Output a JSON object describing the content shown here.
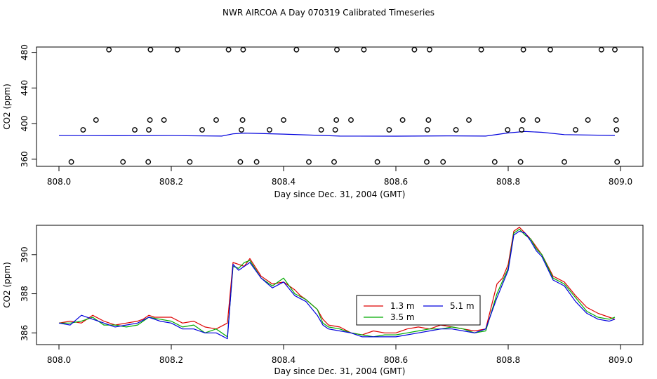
{
  "title": "NWR AIRCOA A  Day 070319  Calibrated Timeseries",
  "top_panel": {
    "ylabel": "CO2 (ppm)",
    "xlabel": "Day since Dec. 31, 2004 (GMT)",
    "xlim": [
      808.0,
      809.0
    ],
    "ylim": [
      352,
      486
    ],
    "xticks": [
      "808.0",
      "808.2",
      "808.4",
      "808.6",
      "808.8",
      "809.0"
    ],
    "yticks": [
      "360",
      "400",
      "440",
      "480"
    ]
  },
  "bottom_panel": {
    "ylabel": "CO2 (ppm)",
    "xlabel": "Day since Dec. 31, 2004 (GMT)",
    "xlim": [
      808.0,
      809.0
    ],
    "ylim": [
      385.4,
      391.5
    ],
    "xticks": [
      "808.0",
      "808.2",
      "808.4",
      "808.6",
      "808.8",
      "809.0"
    ],
    "yticks": [
      "386",
      "388",
      "390"
    ],
    "legend": [
      {
        "label": "1.3 m",
        "color": "#dd0000"
      },
      {
        "label": "3.5 m",
        "color": "#00aa00"
      },
      {
        "label": "5.1 m",
        "color": "#0000dd"
      }
    ]
  },
  "chart_data": [
    {
      "type": "scatter+line",
      "title": "NWR AIRCOA A  Day 070319  Calibrated Timeseries",
      "xlabel": "Day since Dec. 31, 2004 (GMT)",
      "ylabel": "CO2 (ppm)",
      "xlim": [
        808.0,
        809.0
      ],
      "ylim": [
        352,
        486
      ],
      "calibration_points": {
        "x": [
          808.022,
          808.043,
          808.066,
          808.089,
          808.114,
          808.135,
          808.159,
          808.16,
          808.162,
          808.163,
          808.187,
          808.211,
          808.233,
          808.255,
          808.28,
          808.302,
          808.323,
          808.325,
          808.327,
          808.328,
          808.352,
          808.375,
          808.4,
          808.423,
          808.445,
          808.467,
          808.49,
          808.492,
          808.494,
          808.495,
          808.52,
          808.543,
          808.567,
          808.588,
          808.612,
          808.633,
          808.655,
          808.656,
          808.658,
          808.66,
          808.684,
          808.707,
          808.73,
          808.752,
          808.776,
          808.799,
          808.822,
          808.824,
          808.826,
          808.827,
          808.852,
          808.875,
          808.9,
          808.92,
          808.942,
          808.966,
          808.99,
          808.992,
          808.993,
          808.994
        ],
        "y": [
          357,
          393,
          404,
          483,
          357,
          393,
          357,
          393,
          404,
          483,
          404,
          483,
          357,
          393,
          404,
          483,
          357,
          393,
          404,
          483,
          357,
          393,
          404,
          483,
          357,
          393,
          357,
          393,
          404,
          483,
          404,
          483,
          357,
          393,
          404,
          483,
          357,
          393,
          404,
          483,
          357,
          393,
          404,
          483,
          357,
          393,
          357,
          393,
          404,
          483,
          404,
          483,
          357,
          393,
          404,
          483,
          483,
          404,
          393,
          357
        ]
      },
      "series": [
        {
          "name": "fit",
          "color": "#0000dd",
          "x": [
            808.0,
            808.1,
            808.2,
            808.29,
            808.31,
            808.33,
            808.4,
            808.5,
            808.6,
            808.7,
            808.76,
            808.8,
            808.83,
            808.86,
            808.9,
            808.99
          ],
          "y": [
            386.5,
            386.4,
            386.5,
            386.0,
            388.5,
            389.4,
            388.2,
            386.0,
            385.9,
            386.2,
            386.0,
            389.5,
            391.2,
            390.2,
            387.6,
            386.7
          ]
        }
      ]
    },
    {
      "type": "line",
      "xlabel": "Day since Dec. 31, 2004 (GMT)",
      "ylabel": "CO2 (ppm)",
      "xlim": [
        808.0,
        809.0
      ],
      "ylim": [
        385.4,
        391.5
      ],
      "legend_position": "center-right",
      "series": [
        {
          "name": "1.3 m",
          "color": "#dd0000",
          "x": [
            808.0,
            808.02,
            808.04,
            808.06,
            808.08,
            808.1,
            808.12,
            808.14,
            808.15,
            808.16,
            808.17,
            808.18,
            808.2,
            808.22,
            808.24,
            808.26,
            808.28,
            808.3,
            808.31,
            808.32,
            808.33,
            808.34,
            808.36,
            808.38,
            808.4,
            808.42,
            808.43,
            808.44,
            808.46,
            808.47,
            808.48,
            808.5,
            808.52,
            808.54,
            808.56,
            808.58,
            808.6,
            808.62,
            808.64,
            808.66,
            808.68,
            808.7,
            808.72,
            808.74,
            808.76,
            808.78,
            808.79,
            808.8,
            808.81,
            808.82,
            808.83,
            808.84,
            808.85,
            808.86,
            808.88,
            808.9,
            808.92,
            808.94,
            808.96,
            808.98,
            808.99
          ],
          "y": [
            386.5,
            386.6,
            386.5,
            386.9,
            386.6,
            386.4,
            386.5,
            386.6,
            386.7,
            386.9,
            386.8,
            386.8,
            386.8,
            386.5,
            386.6,
            386.3,
            386.2,
            386.5,
            389.6,
            389.5,
            389.4,
            389.8,
            388.9,
            388.5,
            388.6,
            388.2,
            387.9,
            387.7,
            387.2,
            386.7,
            386.4,
            386.3,
            386.0,
            385.9,
            386.1,
            386.0,
            386.0,
            386.2,
            386.3,
            386.2,
            386.4,
            386.3,
            386.2,
            386.1,
            386.2,
            388.5,
            388.8,
            389.5,
            391.2,
            391.4,
            391.1,
            390.8,
            390.4,
            390.0,
            388.9,
            388.6,
            387.9,
            387.3,
            387.0,
            386.8,
            386.7
          ]
        },
        {
          "name": "3.5 m",
          "color": "#00aa00",
          "x": [
            808.0,
            808.02,
            808.04,
            808.06,
            808.08,
            808.1,
            808.12,
            808.14,
            808.16,
            808.18,
            808.2,
            808.22,
            808.24,
            808.26,
            808.28,
            808.3,
            808.31,
            808.32,
            808.33,
            808.34,
            808.36,
            808.38,
            808.4,
            808.42,
            808.44,
            808.46,
            808.47,
            808.48,
            808.5,
            808.52,
            808.54,
            808.56,
            808.58,
            808.6,
            808.62,
            808.64,
            808.66,
            808.68,
            808.7,
            808.72,
            808.74,
            808.76,
            808.78,
            808.8,
            808.81,
            808.82,
            808.83,
            808.84,
            808.85,
            808.86,
            808.88,
            808.9,
            808.92,
            808.94,
            808.96,
            808.98,
            808.99
          ],
          "y": [
            386.5,
            386.5,
            386.6,
            386.8,
            386.4,
            386.4,
            386.3,
            386.4,
            386.8,
            386.7,
            386.6,
            386.3,
            386.4,
            386.0,
            386.2,
            385.8,
            389.4,
            389.3,
            389.6,
            389.7,
            388.8,
            388.4,
            388.8,
            388.0,
            387.7,
            387.2,
            386.5,
            386.3,
            386.2,
            386.0,
            385.9,
            385.8,
            385.9,
            385.9,
            386.0,
            386.1,
            386.2,
            386.2,
            386.3,
            386.2,
            386.0,
            386.1,
            388.0,
            389.3,
            391.1,
            391.3,
            391.0,
            390.8,
            390.3,
            390.0,
            388.8,
            388.5,
            387.8,
            387.1,
            386.8,
            386.7,
            386.8
          ]
        },
        {
          "name": "5.1 m",
          "color": "#0000dd",
          "x": [
            808.0,
            808.02,
            808.04,
            808.06,
            808.08,
            808.1,
            808.12,
            808.14,
            808.16,
            808.18,
            808.2,
            808.22,
            808.24,
            808.26,
            808.28,
            808.3,
            808.31,
            808.32,
            808.33,
            808.34,
            808.36,
            808.38,
            808.4,
            808.42,
            808.44,
            808.46,
            808.47,
            808.48,
            808.5,
            808.52,
            808.54,
            808.56,
            808.58,
            808.6,
            808.62,
            808.64,
            808.66,
            808.68,
            808.7,
            808.72,
            808.74,
            808.76,
            808.78,
            808.8,
            808.81,
            808.82,
            808.83,
            808.84,
            808.85,
            808.86,
            808.88,
            808.9,
            808.92,
            808.94,
            808.96,
            808.98,
            808.99
          ],
          "y": [
            386.5,
            386.4,
            386.9,
            386.7,
            386.5,
            386.3,
            386.4,
            386.5,
            386.8,
            386.6,
            386.5,
            386.2,
            386.2,
            386.0,
            386.0,
            385.7,
            389.5,
            389.2,
            389.4,
            389.6,
            388.8,
            388.3,
            388.6,
            387.9,
            387.6,
            386.9,
            386.4,
            386.2,
            386.1,
            386.0,
            385.8,
            385.8,
            385.8,
            385.8,
            385.9,
            386.0,
            386.1,
            386.2,
            386.2,
            386.1,
            386.0,
            386.2,
            387.8,
            389.2,
            391.0,
            391.2,
            391.1,
            390.7,
            390.2,
            389.9,
            388.7,
            388.4,
            387.6,
            387.0,
            386.7,
            386.6,
            386.7
          ]
        }
      ]
    }
  ]
}
